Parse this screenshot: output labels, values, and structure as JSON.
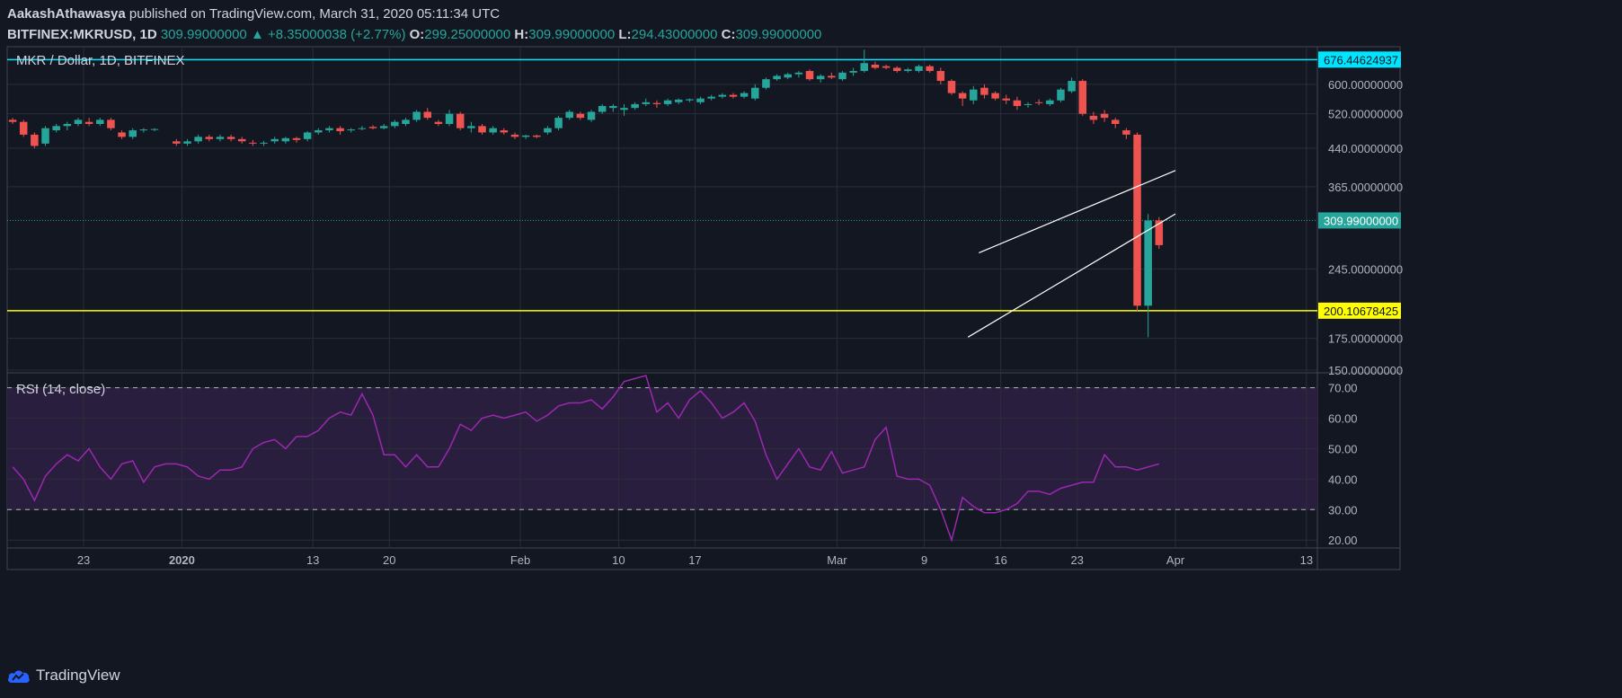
{
  "header": {
    "author": "AakashAthawasya",
    "published": "published on TradingView.com, March 31, 2020 05:11:34 UTC",
    "symbol": "BITFINEX:MKRUSD, 1D",
    "last": "309.99000000",
    "change": "+8.35000038 (+2.77%)",
    "o_label": "O:",
    "o": "299.25000000",
    "h_label": "H:",
    "h": "309.99000000",
    "l_label": "L:",
    "l": "294.43000000",
    "c_label": "C:",
    "c": "309.99000000"
  },
  "footer": {
    "brand": "TradingView",
    "icon": "tradingview-cloud-icon"
  },
  "colors": {
    "background": "#131722",
    "up": "#26a69a",
    "down": "#ef5350",
    "rsi": "#9c27b0",
    "rsi_band": "#2a1e3f",
    "cyan_line": "#00e5ff",
    "yellow_line": "#ffff00",
    "grid": "#2a2e39"
  },
  "chart_data": [
    {
      "type": "candlestick",
      "title": "MKR / Dollar, 1D, BITFINEX",
      "y_scale": "log",
      "ylim": [
        150,
        720
      ],
      "y_ticks": [
        "600.00000000",
        "520.00000000",
        "440.00000000",
        "365.00000000",
        "245.00000000",
        "175.00000000",
        "150.00000000"
      ],
      "x_tick_labels": [
        "23",
        "2020",
        "13",
        "20",
        "Feb",
        "10",
        "17",
        "Mar",
        "9",
        "16",
        "23",
        "Apr",
        "13"
      ],
      "x_range": [
        "2019-12-16",
        "2020-04-14"
      ],
      "horizontal_levels": [
        {
          "label": "676.44624937",
          "value": 676.44624937,
          "color": "#00e5ff"
        },
        {
          "label": "200.10678425",
          "value": 200.10678425,
          "color": "#ffff00"
        }
      ],
      "last_price": {
        "label": "309.99000000",
        "value": 309.99
      },
      "trendlines": [
        {
          "start": [
            "2020-03-14",
            265
          ],
          "end": [
            "2020-04-01",
            395
          ]
        },
        {
          "start": [
            "2020-03-13",
            176
          ],
          "end": [
            "2020-04-01",
            320
          ]
        }
      ],
      "ohlc": [
        [
          "2019-12-16",
          505,
          510,
          495,
          500
        ],
        [
          "2019-12-17",
          500,
          505,
          465,
          470
        ],
        [
          "2019-12-18",
          470,
          475,
          440,
          445
        ],
        [
          "2019-12-19",
          450,
          490,
          445,
          485
        ],
        [
          "2019-12-20",
          480,
          495,
          475,
          490
        ],
        [
          "2019-12-21",
          490,
          500,
          480,
          495
        ],
        [
          "2019-12-22",
          495,
          510,
          490,
          505
        ],
        [
          "2019-12-23",
          500,
          510,
          490,
          495
        ],
        [
          "2019-12-24",
          495,
          510,
          490,
          505
        ],
        [
          "2019-12-25",
          505,
          510,
          480,
          485
        ],
        [
          "2019-12-26",
          475,
          480,
          460,
          465
        ],
        [
          "2019-12-27",
          465,
          485,
          460,
          480
        ],
        [
          "2019-12-28",
          480,
          485,
          475,
          482
        ],
        [
          "2019-12-29",
          482,
          485,
          478,
          483
        ],
        [
          "2019-12-31",
          455,
          460,
          445,
          450
        ],
        [
          "2020-01-01",
          450,
          460,
          445,
          455
        ],
        [
          "2020-01-02",
          455,
          470,
          450,
          465
        ],
        [
          "2020-01-03",
          465,
          470,
          455,
          460
        ],
        [
          "2020-01-04",
          460,
          470,
          455,
          465
        ],
        [
          "2020-01-05",
          465,
          470,
          455,
          460
        ],
        [
          "2020-01-06",
          460,
          465,
          450,
          455
        ],
        [
          "2020-01-07",
          452,
          458,
          445,
          450
        ],
        [
          "2020-01-08",
          450,
          456,
          445,
          452
        ],
        [
          "2020-01-09",
          455,
          465,
          450,
          460
        ],
        [
          "2020-01-10",
          455,
          465,
          450,
          462
        ],
        [
          "2020-01-11",
          462,
          465,
          452,
          458
        ],
        [
          "2020-01-12",
          460,
          478,
          455,
          475
        ],
        [
          "2020-01-13",
          475,
          485,
          470,
          480
        ],
        [
          "2020-01-14",
          480,
          490,
          475,
          485
        ],
        [
          "2020-01-15",
          485,
          490,
          470,
          478
        ],
        [
          "2020-01-16",
          480,
          485,
          475,
          482
        ],
        [
          "2020-01-17",
          485,
          490,
          480,
          485
        ],
        [
          "2020-01-18",
          488,
          492,
          482,
          485
        ],
        [
          "2020-01-19",
          485,
          495,
          482,
          490
        ],
        [
          "2020-01-20",
          490,
          505,
          485,
          500
        ],
        [
          "2020-01-21",
          495,
          510,
          490,
          505
        ],
        [
          "2020-01-22",
          505,
          530,
          500,
          525
        ],
        [
          "2020-01-23",
          525,
          535,
          505,
          510
        ],
        [
          "2020-01-24",
          500,
          505,
          490,
          495
        ],
        [
          "2020-01-25",
          495,
          530,
          490,
          520
        ],
        [
          "2020-01-26",
          520,
          525,
          480,
          485
        ],
        [
          "2020-01-27",
          485,
          500,
          475,
          490
        ],
        [
          "2020-01-28",
          490,
          495,
          470,
          475
        ],
        [
          "2020-01-29",
          475,
          490,
          470,
          485
        ],
        [
          "2020-01-30",
          480,
          485,
          470,
          475
        ],
        [
          "2020-01-31",
          470,
          475,
          460,
          465
        ],
        [
          "2020-02-01",
          465,
          470,
          460,
          468
        ],
        [
          "2020-02-02",
          468,
          470,
          462,
          465
        ],
        [
          "2020-02-03",
          475,
          490,
          470,
          485
        ],
        [
          "2020-02-04",
          485,
          515,
          480,
          510
        ],
        [
          "2020-02-05",
          510,
          530,
          505,
          525
        ],
        [
          "2020-02-06",
          520,
          525,
          505,
          510
        ],
        [
          "2020-02-07",
          505,
          530,
          500,
          525
        ],
        [
          "2020-02-08",
          525,
          545,
          520,
          540
        ],
        [
          "2020-02-09",
          535,
          545,
          525,
          540
        ],
        [
          "2020-02-10",
          530,
          545,
          515,
          535
        ],
        [
          "2020-02-11",
          535,
          550,
          530,
          545
        ],
        [
          "2020-02-12",
          545,
          560,
          540,
          550
        ],
        [
          "2020-02-13",
          548,
          555,
          535,
          545
        ],
        [
          "2020-02-14",
          545,
          560,
          540,
          555
        ],
        [
          "2020-02-15",
          550,
          560,
          545,
          557
        ],
        [
          "2020-02-16",
          555,
          560,
          550,
          558
        ],
        [
          "2020-02-17",
          550,
          565,
          545,
          560
        ],
        [
          "2020-02-18",
          560,
          570,
          555,
          565
        ],
        [
          "2020-02-19",
          565,
          575,
          560,
          570
        ],
        [
          "2020-02-20",
          570,
          575,
          560,
          565
        ],
        [
          "2020-02-21",
          565,
          580,
          560,
          575
        ],
        [
          "2020-02-22",
          560,
          600,
          555,
          590
        ],
        [
          "2020-02-23",
          590,
          620,
          585,
          615
        ],
        [
          "2020-02-24",
          615,
          630,
          610,
          625
        ],
        [
          "2020-02-25",
          620,
          635,
          615,
          630
        ],
        [
          "2020-02-26",
          630,
          640,
          620,
          635
        ],
        [
          "2020-02-27",
          640,
          645,
          610,
          615
        ],
        [
          "2020-02-28",
          615,
          630,
          605,
          625
        ],
        [
          "2020-02-29",
          625,
          635,
          615,
          620
        ],
        [
          "2020-03-01",
          615,
          640,
          610,
          635
        ],
        [
          "2020-03-02",
          635,
          650,
          625,
          640
        ],
        [
          "2020-03-03",
          640,
          710,
          635,
          665
        ],
        [
          "2020-03-04",
          660,
          670,
          645,
          650
        ],
        [
          "2020-03-05",
          655,
          660,
          645,
          650
        ],
        [
          "2020-03-06",
          650,
          655,
          635,
          640
        ],
        [
          "2020-03-07",
          640,
          650,
          635,
          645
        ],
        [
          "2020-03-08",
          640,
          660,
          635,
          655
        ],
        [
          "2020-03-09",
          655,
          660,
          635,
          640
        ],
        [
          "2020-03-10",
          640,
          650,
          600,
          610
        ],
        [
          "2020-03-11",
          610,
          615,
          570,
          575
        ],
        [
          "2020-03-12",
          575,
          580,
          540,
          560
        ],
        [
          "2020-03-13",
          555,
          595,
          545,
          585
        ],
        [
          "2020-03-14",
          590,
          600,
          560,
          570
        ],
        [
          "2020-03-15",
          575,
          580,
          555,
          560
        ],
        [
          "2020-03-16",
          560,
          570,
          545,
          555
        ],
        [
          "2020-03-17",
          555,
          565,
          530,
          540
        ],
        [
          "2020-03-18",
          545,
          550,
          535,
          545
        ],
        [
          "2020-03-19",
          550,
          558,
          542,
          548
        ],
        [
          "2020-03-20",
          545,
          560,
          540,
          555
        ],
        [
          "2020-03-21",
          555,
          590,
          550,
          585
        ],
        [
          "2020-03-22",
          580,
          620,
          575,
          610
        ],
        [
          "2020-03-23",
          610,
          615,
          515,
          520
        ],
        [
          "2020-03-24",
          515,
          525,
          495,
          505
        ],
        [
          "2020-03-25",
          520,
          530,
          500,
          510
        ],
        [
          "2020-03-26",
          505,
          510,
          485,
          495
        ],
        [
          "2020-03-27",
          480,
          485,
          460,
          470
        ],
        [
          "2020-03-28",
          470,
          475,
          200,
          205
        ],
        [
          "2020-03-29",
          205,
          320,
          176,
          310
        ],
        [
          "2020-03-30",
          310,
          315,
          270,
          275
        ]
      ]
    },
    {
      "type": "line",
      "title": "RSI (14, close)",
      "ylim": [
        18,
        74
      ],
      "y_ticks": [
        "70.00",
        "60.00",
        "50.00",
        "40.00",
        "30.00",
        "20.00"
      ],
      "band": [
        30,
        70
      ],
      "series": [
        {
          "x": [
            "2019-12-16",
            "2019-12-17",
            "2019-12-18",
            "2019-12-19",
            "2019-12-20",
            "2019-12-21",
            "2019-12-22",
            "2019-12-23",
            "2019-12-24",
            "2019-12-25",
            "2019-12-26",
            "2019-12-27",
            "2019-12-28",
            "2019-12-29",
            "2019-12-30",
            "2019-12-31",
            "2020-01-01",
            "2020-01-02",
            "2020-01-03",
            "2020-01-04",
            "2020-01-05",
            "2020-01-06",
            "2020-01-07",
            "2020-01-08",
            "2020-01-09",
            "2020-01-10",
            "2020-01-11",
            "2020-01-12",
            "2020-01-13",
            "2020-01-14",
            "2020-01-15",
            "2020-01-16",
            "2020-01-17",
            "2020-01-18",
            "2020-01-19",
            "2020-01-20",
            "2020-01-21",
            "2020-01-22",
            "2020-01-23",
            "2020-01-24",
            "2020-01-25",
            "2020-01-26",
            "2020-01-27",
            "2020-01-28",
            "2020-01-29",
            "2020-01-30",
            "2020-01-31",
            "2020-02-01",
            "2020-02-02",
            "2020-02-03",
            "2020-02-04",
            "2020-02-05",
            "2020-02-06",
            "2020-02-07",
            "2020-02-08",
            "2020-02-09",
            "2020-02-10",
            "2020-02-11",
            "2020-02-12",
            "2020-02-13",
            "2020-02-14",
            "2020-02-15",
            "2020-02-16",
            "2020-02-17",
            "2020-02-18",
            "2020-02-19",
            "2020-02-20",
            "2020-02-21",
            "2020-02-22",
            "2020-02-23",
            "2020-02-24",
            "2020-02-25",
            "2020-02-26",
            "2020-02-27",
            "2020-02-28",
            "2020-02-29",
            "2020-03-01",
            "2020-03-02",
            "2020-03-03",
            "2020-03-04",
            "2020-03-05",
            "2020-03-06",
            "2020-03-07",
            "2020-03-08",
            "2020-03-09",
            "2020-03-10",
            "2020-03-11",
            "2020-03-12",
            "2020-03-13",
            "2020-03-14",
            "2020-03-15",
            "2020-03-16",
            "2020-03-17",
            "2020-03-18",
            "2020-03-19",
            "2020-03-20",
            "2020-03-21",
            "2020-03-22",
            "2020-03-23",
            "2020-03-24",
            "2020-03-25",
            "2020-03-26",
            "2020-03-27",
            "2020-03-28",
            "2020-03-29",
            "2020-03-30"
          ],
          "values": [
            44,
            40,
            33,
            41,
            45,
            48,
            46,
            50,
            44,
            40,
            45,
            46,
            39,
            44,
            45,
            45,
            44,
            41,
            40,
            43,
            43,
            44,
            50,
            52,
            53,
            50,
            54,
            54,
            56,
            60,
            62,
            61,
            68,
            61,
            48,
            48,
            44,
            48,
            44,
            44,
            50,
            58,
            56,
            60,
            61,
            60,
            61,
            62,
            59,
            61,
            64,
            65,
            65,
            66,
            63,
            67,
            72,
            73,
            74,
            62,
            65,
            60,
            66,
            69,
            65,
            60,
            62,
            65,
            59,
            48,
            40,
            45,
            50,
            44,
            43,
            49,
            42,
            43,
            44,
            53,
            57,
            41,
            40,
            40,
            38,
            30,
            20,
            34,
            31,
            29,
            29,
            30,
            32,
            36,
            36,
            35,
            37,
            38,
            39,
            39,
            48,
            44,
            44,
            43,
            44,
            45
          ]
        }
      ]
    }
  ]
}
